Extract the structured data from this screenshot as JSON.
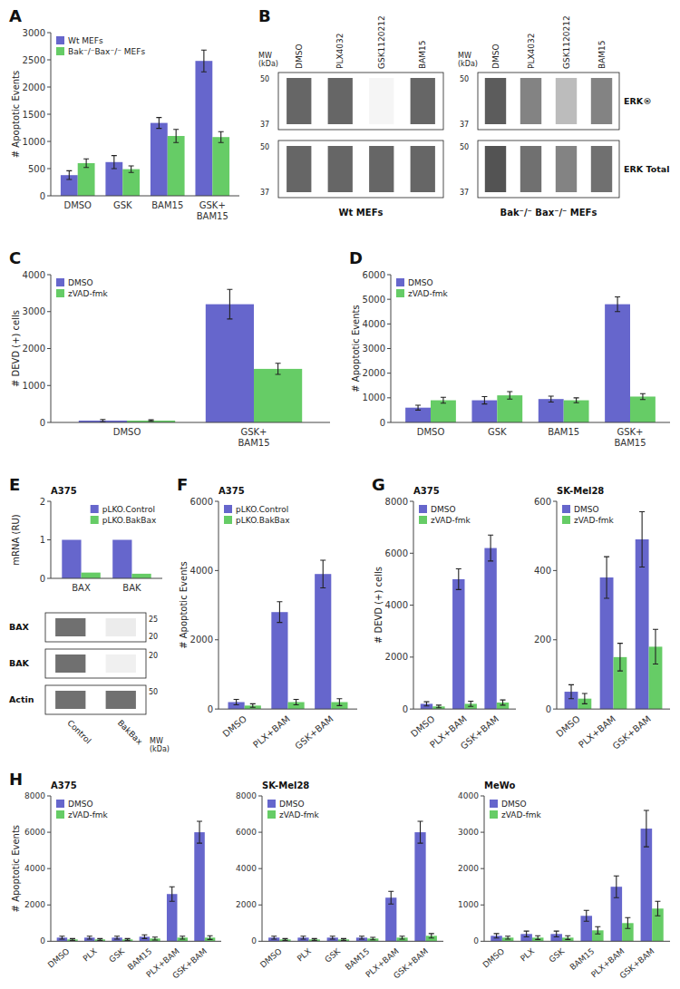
{
  "chart_data": [
    {
      "type": "bar",
      "annotations": [
        "A"
      ],
      "ylabel": "# Apoptotic Events",
      "categories": [
        "DMSO",
        "GSK",
        "BAM15",
        "GSK+\nBAM15"
      ],
      "series": [
        {
          "name": "Wt MEFs",
          "color": "#6666CC",
          "values": [
            380,
            620,
            1340,
            2480
          ],
          "errors": [
            80,
            120,
            100,
            200
          ]
        },
        {
          "name": "Bak⁻/⁻Bax⁻/⁻ MEFs",
          "color": "#66CC66",
          "values": [
            600,
            490,
            1100,
            1080
          ],
          "errors": [
            80,
            60,
            120,
            100
          ]
        }
      ],
      "ylim": [
        0,
        3000
      ],
      "yticks": [
        0,
        500,
        1000,
        1500,
        2000,
        2500,
        3000
      ],
      "grid": false,
      "legend": "upper left"
    },
    {
      "type": "blot",
      "annotations": [
        "B"
      ],
      "title": "Wt MEFs",
      "ylabel": "MW\n(kDa)",
      "categories": [
        "DMSO",
        "PLX4032",
        "GSK1120212",
        "BAM15"
      ],
      "series": [
        {
          "values": [
            0.8,
            0.8,
            0.05,
            0.8
          ],
          "mw_labels": [
            "50",
            "37"
          ]
        },
        {
          "values": [
            0.8,
            0.8,
            0.8,
            0.8
          ],
          "mw_labels": [
            "50",
            "37"
          ]
        }
      ]
    },
    {
      "type": "blot",
      "title": "Bak⁻/⁻ Bax⁻/⁻ MEFs",
      "ylabel": "MW\n(kDa)",
      "categories": [
        "DMSO",
        "PLX4032",
        "GSK1120212",
        "BAM15"
      ],
      "series": [
        {
          "name": "ERK®",
          "values": [
            0.85,
            0.65,
            0.35,
            0.65
          ],
          "mw_labels": [
            "50",
            "37"
          ]
        },
        {
          "name": "ERK Total",
          "values": [
            0.9,
            0.75,
            0.65,
            0.75
          ],
          "mw_labels": [
            "50",
            "37"
          ]
        }
      ]
    },
    {
      "type": "bar",
      "annotations": [
        "C"
      ],
      "ylabel": "# DEVD (+) cells",
      "categories": [
        "DMSO",
        "GSK+\nBAM15"
      ],
      "series": [
        {
          "name": "DMSO",
          "color": "#6666CC",
          "values": [
            50,
            3200
          ],
          "errors": [
            30,
            400
          ]
        },
        {
          "name": "zVAD-fmk",
          "color": "#66CC66",
          "values": [
            50,
            1450
          ],
          "errors": [
            20,
            150
          ]
        }
      ],
      "ylim": [
        0,
        4000
      ],
      "yticks": [
        0,
        1000,
        2000,
        3000,
        4000
      ],
      "grid": false,
      "legend": "upper left"
    },
    {
      "type": "bar",
      "annotations": [
        "D"
      ],
      "ylabel": "# Apoptotic Events",
      "categories": [
        "DMSO",
        "GSK",
        "BAM15",
        "GSK+\nBAM15"
      ],
      "series": [
        {
          "name": "DMSO",
          "color": "#6666CC",
          "values": [
            600,
            900,
            950,
            4800
          ],
          "errors": [
            100,
            150,
            120,
            300
          ]
        },
        {
          "name": "zVAD-fmk",
          "color": "#66CC66",
          "values": [
            900,
            1100,
            900,
            1050
          ],
          "errors": [
            120,
            150,
            100,
            120
          ]
        }
      ],
      "ylim": [
        0,
        6000
      ],
      "yticks": [
        0,
        1000,
        2000,
        3000,
        4000,
        5000,
        6000
      ],
      "grid": false,
      "legend": "upper left"
    },
    {
      "type": "bar",
      "annotations": [
        "E"
      ],
      "title": "A375",
      "ylabel": "mRNA (RU)",
      "categories": [
        "BAX",
        "BAK"
      ],
      "series": [
        {
          "name": "pLKO.Control",
          "color": "#6666CC",
          "values": [
            1.0,
            1.0
          ]
        },
        {
          "name": "pLKO.BakBax",
          "color": "#66CC66",
          "values": [
            0.15,
            0.12
          ]
        }
      ],
      "ylim": [
        0,
        2
      ],
      "yticks": [
        0,
        1,
        2
      ],
      "grid": false,
      "legend": "upper right"
    },
    {
      "type": "blot",
      "ylabel": "MW\n(kDa)",
      "categories": [
        "Control",
        "BakBax"
      ],
      "series": [
        {
          "name": "BAX",
          "values": [
            0.75,
            0.1
          ],
          "mw_labels": [
            "25",
            "20"
          ]
        },
        {
          "name": "BAK",
          "values": [
            0.75,
            0.08
          ],
          "mw_labels": [
            "20"
          ]
        },
        {
          "name": "Actin",
          "values": [
            0.75,
            0.75
          ],
          "mw_labels": [
            "50"
          ]
        }
      ]
    },
    {
      "type": "bar",
      "annotations": [
        "F"
      ],
      "title": "A375",
      "ylabel": "# Apoptotic Events",
      "categories": [
        "DMSO",
        "PLX+BAM",
        "GSK+BAM"
      ],
      "series": [
        {
          "name": "pLKO.Control",
          "color": "#6666CC",
          "values": [
            200,
            2800,
            3900
          ],
          "errors": [
            80,
            300,
            400
          ]
        },
        {
          "name": "pLKO.BakBax",
          "color": "#66CC66",
          "values": [
            100,
            200,
            200
          ],
          "errors": [
            50,
            80,
            100
          ]
        }
      ],
      "ylim": [
        0,
        6000
      ],
      "yticks": [
        0,
        2000,
        4000,
        6000
      ],
      "grid": false,
      "legend": "upper left"
    },
    {
      "type": "bar",
      "annotations": [
        "G"
      ],
      "title": "A375",
      "ylabel": "# DEVD (+) cells",
      "categories": [
        "DMSO",
        "PLX+BAM",
        "GSK+BAM"
      ],
      "series": [
        {
          "name": "DMSO",
          "color": "#6666CC",
          "values": [
            200,
            5000,
            6200
          ],
          "errors": [
            80,
            400,
            500
          ]
        },
        {
          "name": "zVAD-fmk",
          "color": "#66CC66",
          "values": [
            100,
            200,
            250
          ],
          "errors": [
            50,
            100,
            100
          ]
        }
      ],
      "ylim": [
        0,
        8000
      ],
      "yticks": [
        0,
        2000,
        4000,
        6000,
        8000
      ],
      "grid": false,
      "legend": "upper left"
    },
    {
      "type": "bar",
      "title": "SK-Mel28",
      "categories": [
        "DMSO",
        "PLX+BAM",
        "GSK+BAM"
      ],
      "series": [
        {
          "name": "DMSO",
          "color": "#6666CC",
          "values": [
            50,
            380,
            490
          ],
          "errors": [
            20,
            60,
            80
          ]
        },
        {
          "name": "zVAD-fmk",
          "color": "#66CC66",
          "values": [
            30,
            150,
            180
          ],
          "errors": [
            15,
            40,
            50
          ]
        }
      ],
      "ylim": [
        0,
        600
      ],
      "yticks": [
        0,
        200,
        400,
        600
      ],
      "grid": false,
      "legend": "upper left"
    },
    {
      "type": "bar",
      "annotations": [
        "H"
      ],
      "title": "A375",
      "ylabel": "# Apoptotic Events",
      "categories": [
        "DMSO",
        "PLX",
        "GSK",
        "BAM15",
        "PLX+BAM",
        "GSK+BAM"
      ],
      "series": [
        {
          "name": "DMSO",
          "color": "#6666CC",
          "values": [
            200,
            200,
            200,
            250,
            2600,
            6000
          ],
          "errors": [
            80,
            80,
            80,
            100,
            400,
            600
          ]
        },
        {
          "name": "zVAD-fmk",
          "color": "#66CC66",
          "values": [
            100,
            100,
            100,
            150,
            200,
            200
          ],
          "errors": [
            50,
            50,
            50,
            80,
            80,
            100
          ]
        }
      ],
      "ylim": [
        0,
        8000
      ],
      "yticks": [
        0,
        2000,
        4000,
        6000,
        8000
      ],
      "grid": false,
      "legend": "upper left"
    },
    {
      "type": "bar",
      "title": "SK-Mel28",
      "categories": [
        "DMSO",
        "PLX",
        "GSK",
        "BAM15",
        "PLX+BAM",
        "GSK+BAM"
      ],
      "series": [
        {
          "name": "DMSO",
          "color": "#6666CC",
          "values": [
            200,
            200,
            200,
            200,
            2400,
            6000
          ],
          "errors": [
            80,
            80,
            80,
            80,
            350,
            600
          ]
        },
        {
          "name": "zVAD-fmk",
          "color": "#66CC66",
          "values": [
            100,
            100,
            100,
            150,
            200,
            300
          ],
          "errors": [
            50,
            50,
            50,
            70,
            80,
            120
          ]
        }
      ],
      "ylim": [
        0,
        8000
      ],
      "yticks": [
        0,
        2000,
        4000,
        6000,
        8000
      ],
      "grid": false,
      "legend": "upper left"
    },
    {
      "type": "bar",
      "title": "MeWo",
      "categories": [
        "DMSO",
        "PLX",
        "GSK",
        "BAM15",
        "PLX+BAM",
        "GSK+BAM"
      ],
      "series": [
        {
          "name": "DMSO",
          "color": "#6666CC",
          "values": [
            150,
            200,
            200,
            700,
            1500,
            3100
          ],
          "errors": [
            60,
            80,
            80,
            150,
            300,
            500
          ]
        },
        {
          "name": "zVAD-fmk",
          "color": "#66CC66",
          "values": [
            100,
            100,
            100,
            300,
            500,
            900
          ],
          "errors": [
            40,
            50,
            50,
            100,
            150,
            200
          ]
        }
      ],
      "ylim": [
        0,
        4000
      ],
      "yticks": [
        0,
        1000,
        2000,
        3000,
        4000
      ],
      "grid": false,
      "legend": "upper left"
    }
  ]
}
